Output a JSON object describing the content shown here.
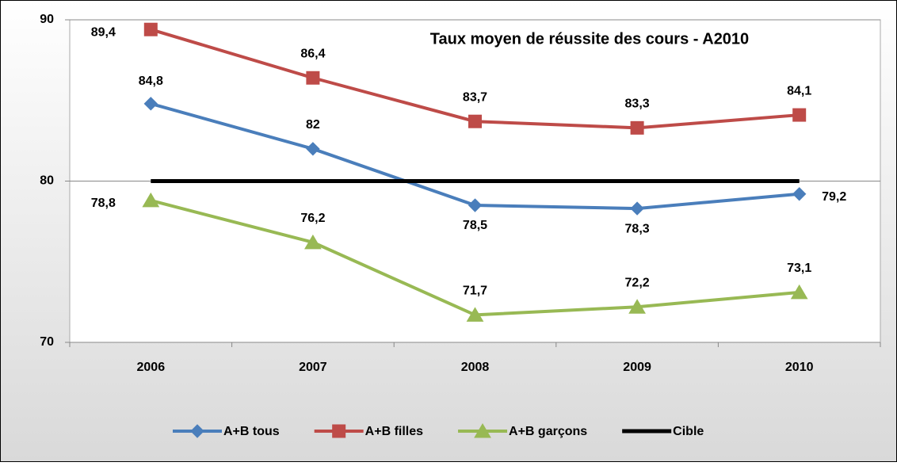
{
  "chart_data": {
    "type": "line",
    "title": "Taux moyen de réussite des cours - A2010",
    "categories": [
      "2006",
      "2007",
      "2008",
      "2009",
      "2010"
    ],
    "series": [
      {
        "name": "A+B tous",
        "color": "#4a7ebb",
        "marker": "diamond",
        "values": [
          84.8,
          82,
          78.5,
          78.3,
          79.2
        ],
        "value_labels": [
          "84,8",
          "82",
          "78,5",
          "78,3",
          "79,2"
        ]
      },
      {
        "name": "A+B filles",
        "color": "#be4b48",
        "marker": "square",
        "values": [
          89.4,
          86.4,
          83.7,
          83.3,
          84.1
        ],
        "value_labels": [
          "89,4",
          "86,4",
          "83,7",
          "83,3",
          "84,1"
        ]
      },
      {
        "name": "A+B garçons",
        "color": "#98b954",
        "marker": "triangle",
        "values": [
          78.8,
          76.2,
          71.7,
          72.2,
          73.1
        ],
        "value_labels": [
          "78,8",
          "76,2",
          "71,7",
          "72,2",
          "73,1"
        ]
      },
      {
        "name": "Cible",
        "color": "#000000",
        "marker": "none",
        "values": [
          80,
          80,
          80,
          80,
          80
        ]
      }
    ],
    "ylim": [
      70,
      90
    ],
    "yticks": [
      70,
      80,
      90
    ],
    "grid": true,
    "legend": "bottom"
  }
}
